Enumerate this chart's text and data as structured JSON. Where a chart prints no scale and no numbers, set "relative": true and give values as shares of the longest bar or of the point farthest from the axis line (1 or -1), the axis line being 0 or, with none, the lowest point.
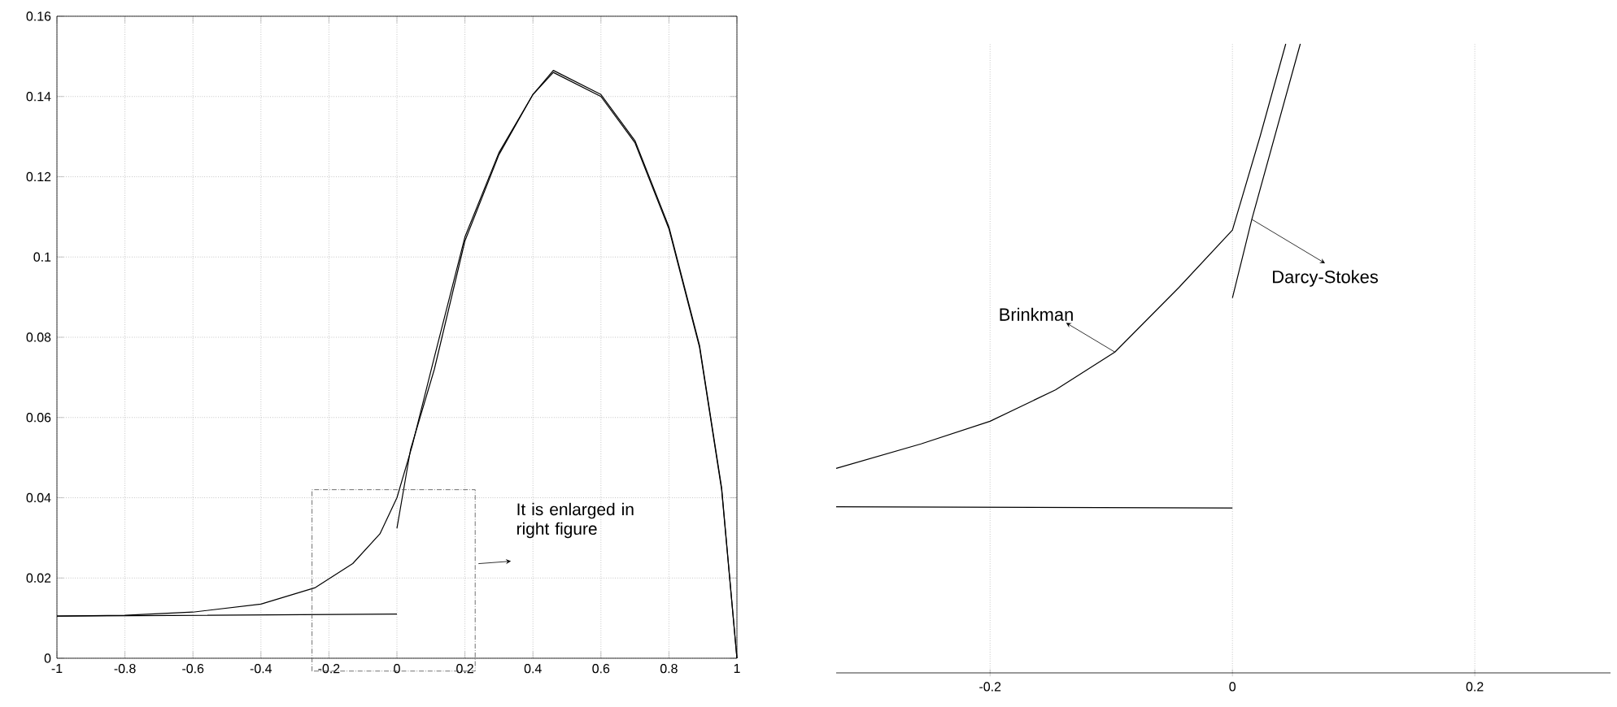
{
  "chart_data": [
    {
      "type": "line",
      "xlim": [
        -1,
        1
      ],
      "ylim": [
        0,
        0.16
      ],
      "xticks": [
        -1,
        -0.8,
        -0.6,
        -0.4,
        -0.2,
        0,
        0.2,
        0.4,
        0.6,
        0.8,
        1
      ],
      "yticks": [
        0,
        0.02,
        0.04,
        0.06,
        0.08,
        0.1,
        0.12,
        0.14,
        0.16
      ],
      "grid": true,
      "annotations": [
        "It is enlarged in right figure"
      ],
      "series": [
        {
          "color": "#000000",
          "x": [
            -1,
            -0.8,
            -0.6,
            -0.4,
            -0.24,
            -0.13,
            -0.05,
            0,
            0.045,
            0.11,
            0.2,
            0.3,
            0.4,
            0.46,
            0.6,
            0.7,
            0.8,
            0.89,
            0.955,
            1
          ],
          "values": [
            0.0105,
            0.0107,
            0.0115,
            0.0135,
            0.0176,
            0.0236,
            0.031,
            0.04,
            0.053,
            0.075,
            0.105,
            0.126,
            0.1405,
            0.1465,
            0.1405,
            0.129,
            0.1075,
            0.078,
            0.0425,
            0
          ]
        },
        {
          "color": "#000000",
          "x": [
            -1,
            0,
            null,
            0,
            0.04,
            0.11,
            0.2,
            0.3,
            0.4,
            0.46,
            0.6,
            0.7,
            0.8,
            0.89,
            0.955,
            1
          ],
          "values": [
            0.0105,
            0.011,
            null,
            0.0324,
            0.052,
            0.072,
            0.104,
            0.1255,
            0.1405,
            0.146,
            0.14,
            0.1285,
            0.107,
            0.0775,
            0.042,
            0
          ]
        }
      ]
    },
    {
      "type": "line",
      "relative": true,
      "xlim": [
        -0.327,
        0.312
      ],
      "xticks": [
        -0.2,
        0,
        0.2
      ],
      "grid": "x",
      "tick_labels": "x",
      "series": [
        {
          "name": "Brinkman",
          "color": "#000000",
          "x": [
            -0.327,
            -0.257,
            -0.2,
            -0.146,
            -0.097,
            -0.044,
            0,
            0.023,
            0.044
          ],
          "values": [
            0.325,
            0.364,
            0.4,
            0.45,
            0.51,
            0.613,
            0.704,
            0.854,
            1.0
          ]
        },
        {
          "name": "Darcy-Stokes",
          "color": "#000000",
          "x": [
            -0.327,
            0,
            null,
            0,
            0.016,
            0.056
          ],
          "values": [
            0.264,
            0.262,
            null,
            0.596,
            0.721,
            1.0
          ]
        }
      ]
    }
  ]
}
